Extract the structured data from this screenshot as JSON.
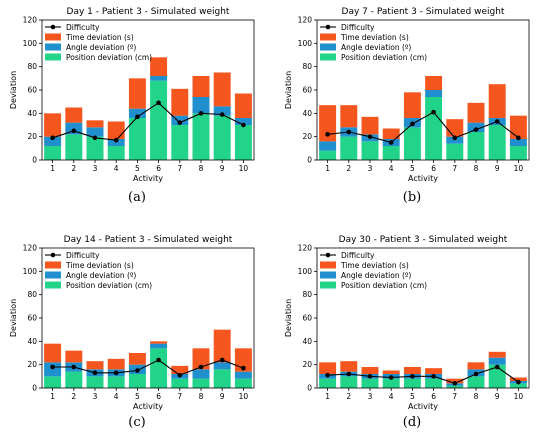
{
  "colors": {
    "difficulty": "#000000",
    "time": "#f4561e",
    "angle": "#1f8fcd",
    "position": "#22d38a"
  },
  "legend": {
    "difficulty": "Difficulty",
    "time": "Time deviation (s)",
    "angle": "Angle deviation (º)",
    "position": "Position deviation (cm)"
  },
  "chart_data": [
    {
      "type": "bar",
      "stacked": true,
      "title": "Day 1 - Patient 3 - Simulated weight",
      "caption": "(a)",
      "xlabel": "Activity",
      "ylabel": "Deviation",
      "ylim": [
        0,
        120
      ],
      "yticks": [
        0,
        20,
        40,
        60,
        80,
        100,
        120
      ],
      "categories": [
        "1",
        "2",
        "3",
        "4",
        "5",
        "6",
        "7",
        "8",
        "9",
        "10"
      ],
      "legend_position": "top-left",
      "series": [
        {
          "name": "Position deviation (cm)",
          "values": [
            12,
            22,
            20,
            12,
            36,
            68,
            30,
            40,
            38,
            30
          ]
        },
        {
          "name": "Angle deviation (º)",
          "values": [
            8,
            10,
            8,
            6,
            8,
            4,
            8,
            14,
            8,
            6
          ]
        },
        {
          "name": "Time deviation (s)",
          "values": [
            20,
            13,
            6,
            15,
            26,
            16,
            23,
            18,
            29,
            21
          ]
        }
      ],
      "line": {
        "name": "Difficulty",
        "values": [
          19,
          25,
          19,
          17,
          37,
          49,
          32,
          40,
          39,
          30
        ]
      }
    },
    {
      "type": "bar",
      "stacked": true,
      "title": "Day 7 - Patient 3 - Simulated weight",
      "caption": "(b)",
      "xlabel": "Activity",
      "ylabel": "Deviation",
      "ylim": [
        0,
        120
      ],
      "yticks": [
        0,
        20,
        40,
        60,
        80,
        100,
        120
      ],
      "categories": [
        "1",
        "2",
        "3",
        "4",
        "5",
        "6",
        "7",
        "8",
        "9",
        "10"
      ],
      "legend_position": "top-left",
      "series": [
        {
          "name": "Position deviation (cm)",
          "values": [
            8,
            20,
            16,
            12,
            28,
            54,
            14,
            24,
            30,
            12
          ]
        },
        {
          "name": "Angle deviation (º)",
          "values": [
            8,
            8,
            6,
            6,
            8,
            6,
            6,
            8,
            6,
            6
          ]
        },
        {
          "name": "Time deviation (s)",
          "values": [
            31,
            19,
            15,
            9,
            22,
            12,
            15,
            17,
            29,
            20
          ]
        }
      ],
      "line": {
        "name": "Difficulty",
        "values": [
          22,
          24,
          20,
          15,
          31,
          41,
          19,
          26,
          33,
          19
        ]
      }
    },
    {
      "type": "bar",
      "stacked": true,
      "title": "Day 14 - Patient 3 - Simulated weight",
      "caption": "(c)",
      "xlabel": "Activity",
      "ylabel": "Deviation",
      "ylim": [
        0,
        120
      ],
      "yticks": [
        0,
        20,
        40,
        60,
        80,
        100,
        120
      ],
      "categories": [
        "1",
        "2",
        "3",
        "4",
        "5",
        "6",
        "7",
        "8",
        "9",
        "10"
      ],
      "legend_position": "top-left",
      "series": [
        {
          "name": "Position deviation (cm)",
          "values": [
            10,
            14,
            10,
            10,
            12,
            34,
            8,
            8,
            16,
            8
          ]
        },
        {
          "name": "Angle deviation (º)",
          "values": [
            12,
            8,
            6,
            6,
            8,
            4,
            4,
            8,
            6,
            6
          ]
        },
        {
          "name": "Time deviation (s)",
          "values": [
            16,
            10,
            7,
            9,
            10,
            2,
            7,
            18,
            28,
            20
          ]
        }
      ],
      "line": {
        "name": "Difficulty",
        "values": [
          18,
          18,
          13,
          13,
          15,
          24,
          11,
          18,
          24,
          17
        ]
      }
    },
    {
      "type": "bar",
      "stacked": true,
      "title": "Day 30 - Patient 3 - Simulated weight",
      "caption": "(d)",
      "xlabel": "Activity",
      "ylabel": "Deviation",
      "ylim": [
        0,
        120
      ],
      "yticks": [
        0,
        20,
        40,
        60,
        80,
        100,
        120
      ],
      "categories": [
        "1",
        "2",
        "3",
        "4",
        "5",
        "6",
        "7",
        "8",
        "9",
        "10"
      ],
      "legend_position": "top-left",
      "series": [
        {
          "name": "Position deviation (cm)",
          "values": [
            8,
            10,
            8,
            8,
            8,
            8,
            2,
            10,
            20,
            4
          ]
        },
        {
          "name": "Angle deviation (º)",
          "values": [
            4,
            4,
            4,
            4,
            4,
            4,
            2,
            6,
            6,
            2
          ]
        },
        {
          "name": "Time deviation (s)",
          "values": [
            10,
            9,
            6,
            3,
            6,
            5,
            4,
            6,
            5,
            3
          ]
        }
      ],
      "line": {
        "name": "Difficulty",
        "values": [
          11,
          12,
          10,
          9,
          10,
          10,
          4,
          12,
          18,
          5
        ]
      }
    }
  ]
}
